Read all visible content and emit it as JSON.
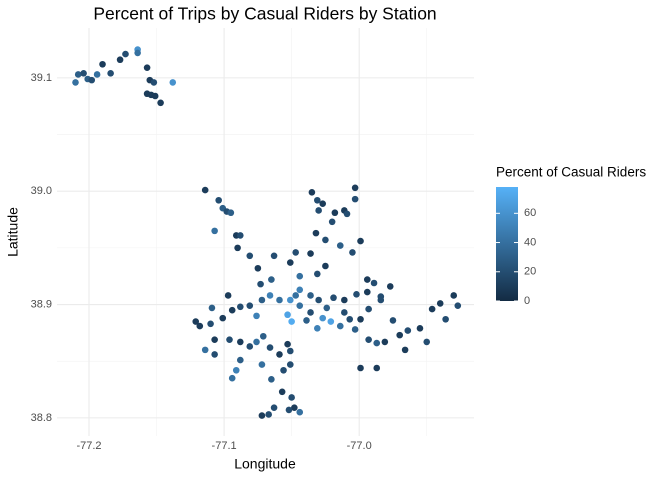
{
  "chart_data": {
    "type": "scatter",
    "title": "Percent of Trips by Casual Riders by Station",
    "x_label": "Longitude",
    "y_label": "Latitude",
    "legend_title": "Percent of Casual Riders",
    "xlim": [
      -77.2237,
      -76.915
    ],
    "ylim": [
      38.784,
      39.144
    ],
    "xticks": [
      -77.2,
      -77.1,
      {
        "value": -77,
        "label": "-77.0"
      }
    ],
    "yticks": [
      38.8,
      38.9,
      {
        "value": 39,
        "label": "39.0"
      },
      39.1
    ],
    "x_minor_grid": [
      -77.15,
      -77.05,
      -76.95
    ],
    "y_minor_grid": [
      38.85,
      38.95,
      39.05
    ],
    "grid": true,
    "color_scale": {
      "lim": [
        0,
        78
      ],
      "ticks": [
        0,
        20,
        40,
        60
      ],
      "low": "#132B43",
      "high": "#56B1F7"
    },
    "x": [
      -77.21,
      -77.208,
      -77.204,
      -77.201,
      -77.198,
      -77.194,
      -77.19,
      -77.184,
      -77.177,
      -77.173,
      -77.164,
      -77.164,
      -77.157,
      -77.155,
      -77.152,
      -77.157,
      -77.154,
      -77.151,
      -77.147,
      -77.138,
      -77.114,
      -77.104,
      -77.101,
      -77.098,
      -77.095,
      -77.107,
      -77.091,
      -77.088,
      -77.09,
      -77.081,
      -77.075,
      -77.063,
      -77.065,
      -77.073,
      -77.035,
      -77.031,
      -77.03,
      -77.027,
      -77.003,
      -77.003,
      -77.011,
      -77.009,
      -77.018,
      -77.02,
      -77.032,
      -77.025,
      -77.014,
      -76.999,
      -77.005,
      -77.036,
      -77.047,
      -77.051,
      -77.044,
      -77.031,
      -77.025,
      -76.994,
      -76.989,
      -76.977,
      -76.984,
      -77.047,
      -77.044,
      -77.051,
      -77.053,
      -77.05,
      -77.036,
      -77.03,
      -77.019,
      -77.011,
      -77.002,
      -76.994,
      -76.984,
      -77.027,
      -77.021,
      -77.014,
      -77.031,
      -77.039,
      -77.059,
      -77.066,
      -77.072,
      -77.081,
      -77.088,
      -77.094,
      -77.101,
      -77.11,
      -77.118,
      -77.121,
      -77.109,
      -77.097,
      -77.076,
      -77.071,
      -77.076,
      -77.081,
      -77.088,
      -77.096,
      -77.107,
      -77.114,
      -77.107,
      -77.088,
      -77.091,
      -77.094,
      -77.072,
      -77.066,
      -77.053,
      -77.051,
      -77.059,
      -77.065,
      -77.056,
      -77.051,
      -77.057,
      -77.05,
      -77.048,
      -77.063,
      -77.072,
      -77.067,
      -77.044,
      -77.052,
      -76.999,
      -76.987,
      -76.993,
      -76.987,
      -76.981,
      -76.975,
      -76.97,
      -76.964,
      -76.966,
      -76.955,
      -76.95,
      -76.946,
      -76.94,
      -76.936,
      -76.93,
      -76.927,
      -77.007,
      -76.999,
      -77.003,
      -76.993,
      -77.011,
      -77.024,
      -77.044,
      -77.036
    ],
    "y": [
      39.096,
      39.103,
      39.104,
      39.099,
      39.098,
      39.103,
      39.112,
      39.104,
      39.116,
      39.121,
      39.125,
      39.122,
      39.109,
      39.098,
      39.096,
      39.086,
      39.085,
      39.084,
      39.078,
      39.096,
      39.001,
      38.992,
      38.985,
      38.982,
      38.981,
      38.965,
      38.961,
      38.961,
      38.95,
      38.943,
      38.932,
      38.943,
      38.922,
      38.918,
      38.999,
      38.992,
      38.983,
      38.989,
      39.003,
      38.993,
      38.983,
      38.98,
      38.981,
      38.973,
      38.963,
      38.957,
      38.952,
      38.956,
      38.946,
      38.945,
      38.946,
      38.937,
      38.925,
      38.927,
      38.934,
      38.922,
      38.919,
      38.916,
      38.907,
      38.908,
      38.913,
      38.904,
      38.891,
      38.885,
      38.908,
      38.904,
      38.906,
      38.904,
      38.909,
      38.911,
      38.904,
      38.888,
      38.885,
      38.881,
      38.879,
      38.886,
      38.904,
      38.908,
      38.904,
      38.899,
      38.898,
      38.895,
      38.888,
      38.883,
      38.881,
      38.885,
      38.897,
      38.908,
      38.89,
      38.872,
      38.867,
      38.863,
      38.867,
      38.869,
      38.869,
      38.86,
      38.856,
      38.851,
      38.842,
      38.835,
      38.847,
      38.862,
      38.865,
      38.859,
      38.856,
      38.834,
      38.842,
      38.847,
      38.823,
      38.818,
      38.809,
      38.809,
      38.802,
      38.803,
      38.805,
      38.807,
      38.844,
      38.844,
      38.869,
      38.866,
      38.867,
      38.886,
      38.873,
      38.877,
      38.86,
      38.879,
      38.867,
      38.896,
      38.901,
      38.887,
      38.908,
      38.899,
      38.887,
      38.887,
      38.878,
      38.896,
      38.893,
      38.897,
      38.899,
      38.893
    ],
    "values": [
      40,
      30,
      20,
      30,
      20,
      40,
      10,
      20,
      10,
      20,
      60,
      40,
      10,
      10,
      20,
      10,
      10,
      10,
      10,
      60,
      10,
      20,
      30,
      20,
      30,
      40,
      10,
      20,
      10,
      20,
      10,
      20,
      30,
      20,
      10,
      20,
      20,
      10,
      10,
      20,
      10,
      20,
      10,
      20,
      10,
      20,
      30,
      10,
      20,
      10,
      20,
      10,
      40,
      20,
      10,
      10,
      20,
      10,
      20,
      40,
      50,
      60,
      70,
      75,
      30,
      20,
      20,
      10,
      20,
      10,
      20,
      60,
      70,
      40,
      50,
      30,
      40,
      50,
      30,
      20,
      20,
      10,
      10,
      20,
      10,
      10,
      30,
      10,
      50,
      30,
      40,
      20,
      10,
      20,
      10,
      40,
      20,
      30,
      50,
      40,
      40,
      20,
      10,
      20,
      10,
      30,
      20,
      20,
      10,
      20,
      10,
      20,
      10,
      20,
      40,
      20,
      10,
      10,
      20,
      30,
      10,
      20,
      10,
      20,
      10,
      10,
      20,
      10,
      10,
      20,
      10,
      20,
      20,
      10,
      30,
      20,
      20,
      30,
      40,
      20
    ]
  }
}
